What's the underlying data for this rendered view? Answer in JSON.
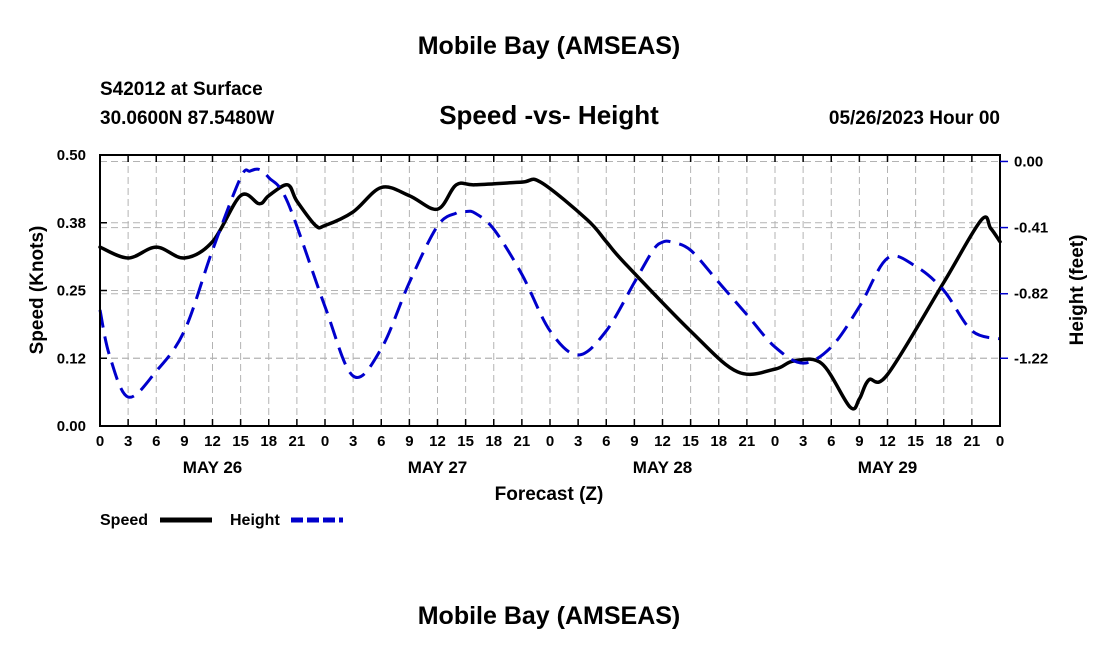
{
  "page": {
    "top_title": "Mobile Bay (AMSEAS)",
    "bottom_title": "Mobile Bay (AMSEAS)",
    "station": "S42012 at Surface",
    "location": "30.0600N  87.5480W",
    "datetime": "05/26/2023 Hour 00"
  },
  "chart_data": {
    "type": "line",
    "title": "Speed -vs- Height",
    "xlabel": "Forecast (Z)",
    "ylabel": "Speed (Knots)",
    "y2label": "Height (feet)",
    "x_unit": "hours since 2023-05-26 00Z",
    "xlim": [
      0,
      96
    ],
    "ylim": [
      0,
      0.5
    ],
    "y2lim": [
      -1.64,
      0.04
    ],
    "grid": true,
    "legend_position": "bottom-left",
    "x_tick_values": [
      0,
      3,
      6,
      9,
      12,
      15,
      18,
      21,
      24,
      27,
      30,
      33,
      36,
      39,
      42,
      45,
      48,
      51,
      54,
      57,
      60,
      63,
      66,
      69,
      72,
      75,
      78,
      81,
      84,
      87,
      90,
      93,
      96
    ],
    "x_tick_labels": [
      "0",
      "3",
      "6",
      "9",
      "12",
      "15",
      "18",
      "21",
      "0",
      "3",
      "6",
      "9",
      "12",
      "15",
      "18",
      "21",
      "0",
      "3",
      "6",
      "9",
      "12",
      "15",
      "18",
      "21",
      "0",
      "3",
      "6",
      "9",
      "12",
      "15",
      "18",
      "21",
      "0"
    ],
    "day_labels": [
      {
        "label": "MAY 26",
        "x": 12
      },
      {
        "label": "MAY 27",
        "x": 36
      },
      {
        "label": "MAY 28",
        "x": 60
      },
      {
        "label": "MAY 29",
        "x": 84
      }
    ],
    "y_ticks": [
      {
        "value": 0.0,
        "label": "0.00"
      },
      {
        "value": 0.125,
        "label": "0.12"
      },
      {
        "value": 0.25,
        "label": "0.25"
      },
      {
        "value": 0.375,
        "label": "0.38"
      },
      {
        "value": 0.5,
        "label": "0.50"
      }
    ],
    "y2_ticks": [
      {
        "value": 0.0,
        "label": "0.00"
      },
      {
        "value": -0.41,
        "label": "-0.41"
      },
      {
        "value": -0.82,
        "label": "-0.82"
      },
      {
        "value": -1.22,
        "label": "-1.22"
      }
    ],
    "series": [
      {
        "name": "Speed",
        "axis": "left",
        "color": "#000000",
        "style": "solid",
        "x": [
          0,
          3,
          6,
          9,
          12,
          15,
          17,
          18,
          20,
          21,
          23,
          24,
          27,
          30,
          33,
          36,
          38,
          40,
          45,
          47,
          52,
          54,
          56,
          63,
          68,
          72,
          74,
          77,
          80,
          81,
          82,
          84,
          90,
          94,
          95,
          96
        ],
        "y": [
          0.33,
          0.31,
          0.33,
          0.31,
          0.34,
          0.425,
          0.41,
          0.425,
          0.445,
          0.415,
          0.37,
          0.37,
          0.395,
          0.44,
          0.425,
          0.4,
          0.445,
          0.445,
          0.45,
          0.45,
          0.38,
          0.34,
          0.3,
          0.175,
          0.1,
          0.105,
          0.12,
          0.115,
          0.035,
          0.05,
          0.085,
          0.095,
          0.265,
          0.38,
          0.365,
          0.34
        ]
      },
      {
        "name": "Height",
        "axis": "right",
        "color": "#0000cc",
        "style": "dashed",
        "x": [
          0,
          1,
          3,
          6,
          9,
          12,
          15,
          16,
          17,
          18,
          20,
          24,
          27,
          30,
          33,
          36,
          38,
          39,
          40,
          42,
          45,
          48,
          51,
          54,
          57,
          59,
          60,
          61,
          63,
          66,
          69,
          72,
          75,
          78,
          81,
          84,
          87,
          90,
          93,
          96
        ],
        "y": [
          -0.92,
          -1.2,
          -1.46,
          -1.3,
          -1.05,
          -0.55,
          -0.1,
          -0.06,
          -0.05,
          -0.1,
          -0.25,
          -0.9,
          -1.33,
          -1.16,
          -0.75,
          -0.4,
          -0.32,
          -0.31,
          -0.32,
          -0.42,
          -0.7,
          -1.05,
          -1.2,
          -1.05,
          -0.75,
          -0.55,
          -0.5,
          -0.5,
          -0.55,
          -0.75,
          -0.95,
          -1.15,
          -1.25,
          -1.15,
          -0.9,
          -0.6,
          -0.65,
          -0.8,
          -1.05,
          -1.1
        ]
      }
    ]
  }
}
